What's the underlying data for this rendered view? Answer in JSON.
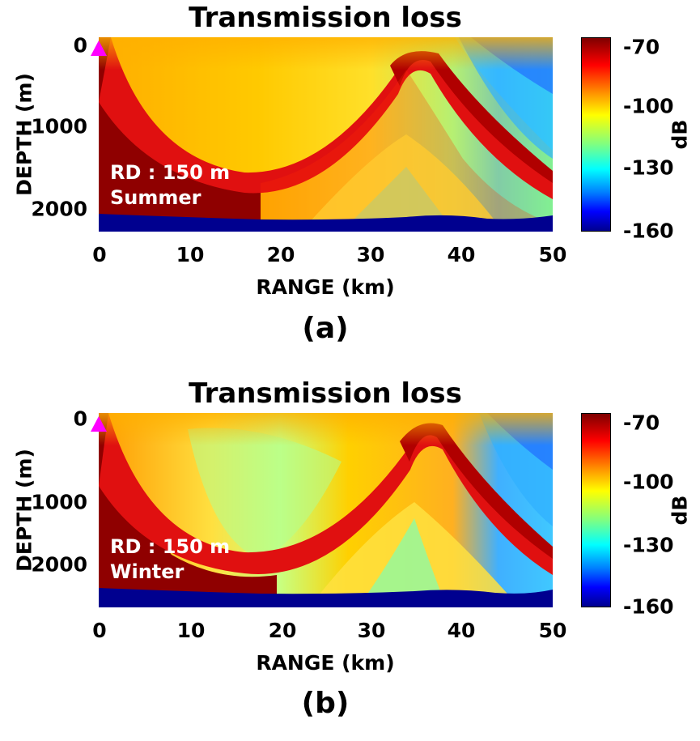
{
  "chart_data": [
    {
      "type": "heatmap",
      "panel": "(a)",
      "title": "Transmission loss",
      "xlabel": "RANGE (km)",
      "ylabel": "DEPTH (m)",
      "xlim": [
        0,
        50
      ],
      "ylim": [
        2200,
        0
      ],
      "x_ticks": [
        "0",
        "10",
        "20",
        "30",
        "40",
        "50"
      ],
      "y_ticks": [
        "0",
        "1000",
        "2000"
      ],
      "colorbar": {
        "label": "dB",
        "ticks": [
          "-70",
          "-100",
          "-130",
          "-160"
        ],
        "range": [
          -160,
          -70
        ]
      },
      "annotation": [
        "RD : 150 m",
        "Summer"
      ],
      "bottom_depth_profile": {
        "range": [
          0,
          10,
          20,
          30,
          36,
          44,
          50
        ],
        "depth": [
          2030,
          2060,
          2080,
          2070,
          2040,
          2080,
          2050
        ]
      },
      "convergence_zone": {
        "range": [
          0,
          8,
          17,
          26,
          33,
          42,
          50
        ],
        "depth": [
          0,
          1100,
          1560,
          900,
          150,
          900,
          1600
        ]
      },
      "source": {
        "range": 0,
        "depth": 10
      },
      "colors": {
        "high": "#7f0000",
        "mid": "#ffff00",
        "low": "#00008f",
        "marker": "#ff00ff"
      }
    },
    {
      "type": "heatmap",
      "panel": "(b)",
      "title": "Transmission loss",
      "xlabel": "RANGE (km)",
      "ylabel": "DEPTH (m)",
      "xlim": [
        0,
        50
      ],
      "ylim": [
        2200,
        0
      ],
      "x_ticks": [
        "0",
        "10",
        "20",
        "30",
        "40",
        "50"
      ],
      "y_ticks": [
        "0",
        "1000",
        "2000"
      ],
      "colorbar": {
        "label": "dB",
        "ticks": [
          "-70",
          "-100",
          "-130",
          "-160"
        ],
        "range": [
          -160,
          -70
        ]
      },
      "annotation": [
        "RD : 150 m",
        "Winter"
      ],
      "bottom_depth_profile": {
        "range": [
          0,
          10,
          20,
          30,
          36,
          44,
          50
        ],
        "depth": [
          2050,
          2070,
          2090,
          2080,
          2050,
          2090,
          2060
        ]
      },
      "convergence_zone": {
        "range": [
          0,
          8,
          17,
          27,
          35,
          43,
          50
        ],
        "depth": [
          0,
          1150,
          1640,
          1000,
          150,
          900,
          1600
        ]
      },
      "source": {
        "range": 0,
        "depth": 10
      },
      "colors": {
        "high": "#7f0000",
        "mid": "#ffff00",
        "low": "#00008f",
        "marker": "#ff00ff"
      }
    }
  ]
}
